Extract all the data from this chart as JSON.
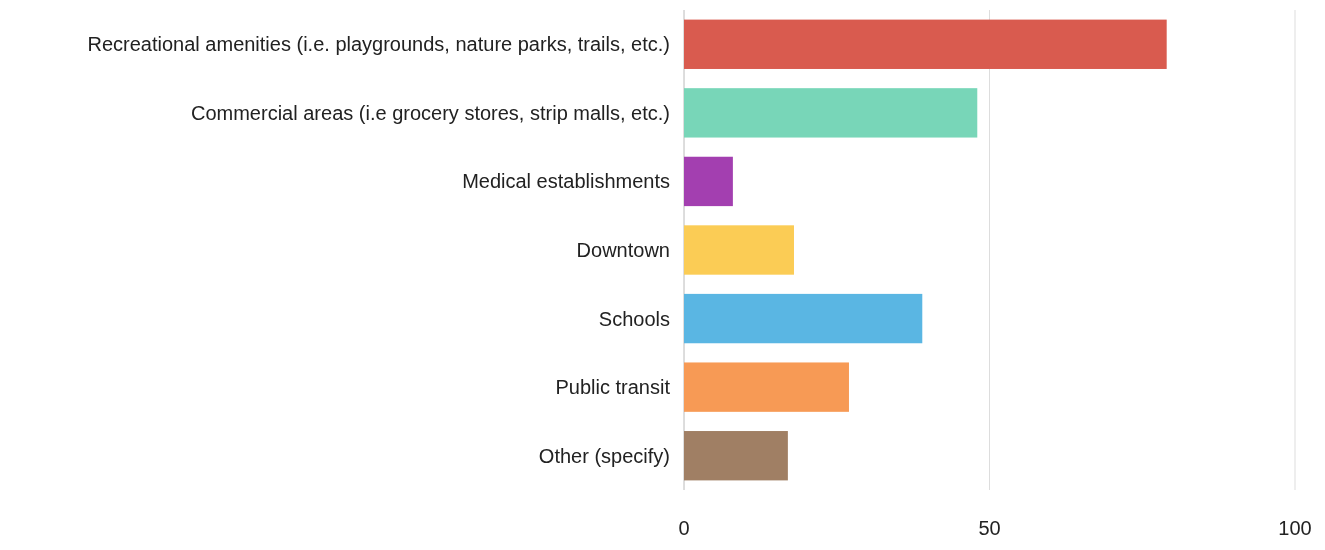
{
  "chart_data": {
    "type": "bar",
    "orientation": "horizontal",
    "categories": [
      "Recreational amenities (i.e. playgrounds, nature parks, trails, etc.)",
      "Commercial areas (i.e grocery stores, strip malls, etc.)",
      "Medical establishments",
      "Downtown",
      "Schools",
      "Public transit",
      "Other (specify)"
    ],
    "values": [
      79,
      48,
      8,
      18,
      39,
      27,
      17
    ],
    "colors": [
      "#d95b4f",
      "#78d6b8",
      "#a33fb0",
      "#fbcc55",
      "#5ab6e3",
      "#f79a55",
      "#a07f64"
    ],
    "xlim": [
      0,
      100
    ],
    "xticks": [
      0,
      50,
      100
    ],
    "grid": "x"
  }
}
